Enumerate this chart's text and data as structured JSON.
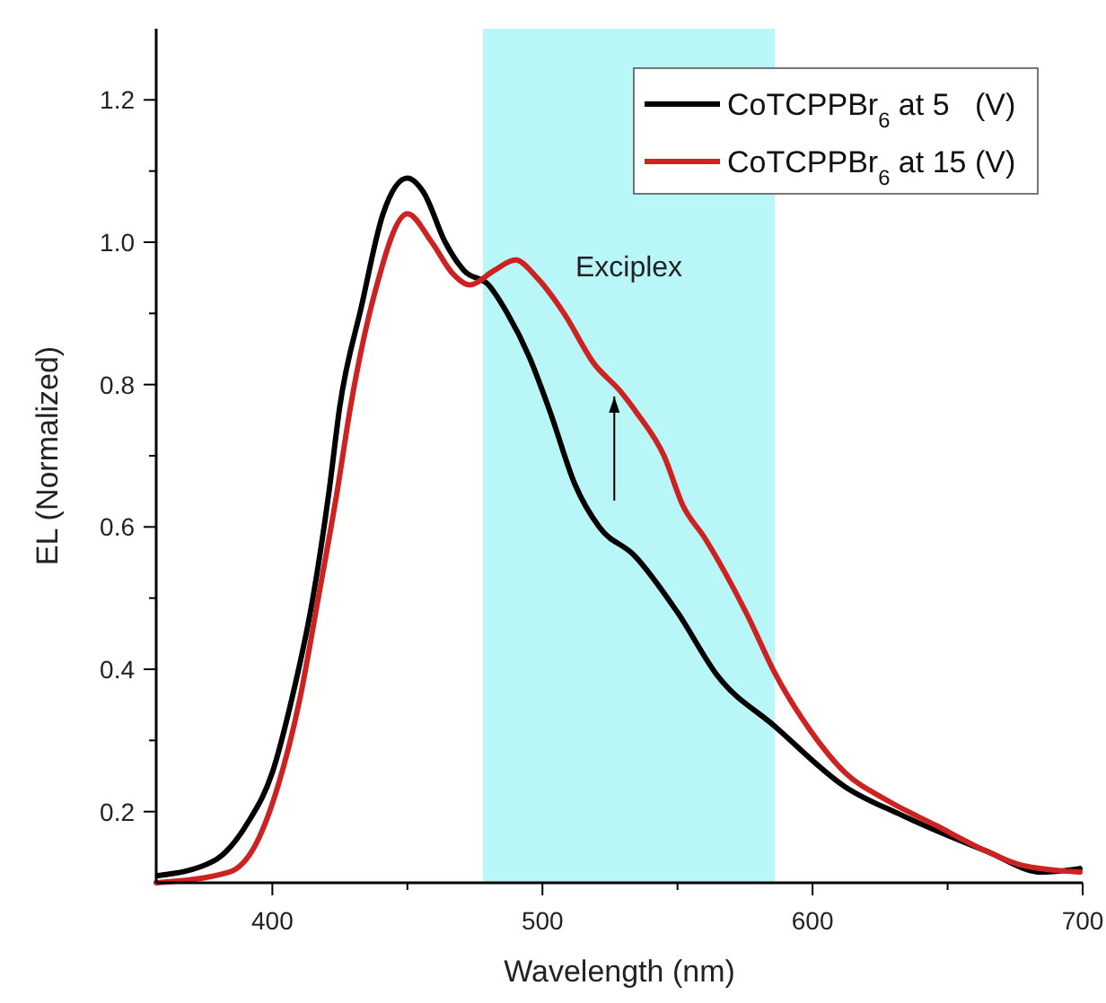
{
  "chart_data": {
    "type": "line",
    "xlabel": "Wavelength (nm)",
    "ylabel": "EL (Normalized)",
    "xlim": [
      357,
      700
    ],
    "ylim": [
      0.1,
      1.3
    ],
    "xticks": [
      400,
      {
        "value": 450,
        "label": null
      },
      500,
      {
        "value": 550,
        "label": null
      },
      600,
      {
        "value": 650,
        "label": null
      },
      700
    ],
    "yticks": [
      0.2,
      {
        "value": 0.3,
        "label": null
      },
      0.4,
      {
        "value": 0.5,
        "label": null
      },
      0.6,
      {
        "value": 0.7,
        "label": null
      },
      0.8,
      {
        "value": 0.9,
        "label": null
      },
      {
        "value": 1,
        "label": "1.0"
      },
      {
        "value": 1.1,
        "label": null
      },
      1.2
    ],
    "grid": false,
    "legend": "top right",
    "line_style": "solid",
    "bands": [
      {
        "axis": "x",
        "from": 478,
        "to": 586,
        "label": "Exciplex",
        "color": "#b8f6f8"
      }
    ],
    "series": [
      {
        "name": "CoTCPPBr$_{6}$ at 5   (V)",
        "color": "#000000",
        "x": [
          357.6,
          378,
          391,
          400,
          407,
          415,
          421,
          425,
          433,
          441,
          450,
          456,
          464,
          471,
          480,
          487,
          495,
          503,
          512,
          521,
          534,
          550,
          565,
          586,
          612,
          633,
          664,
          685,
          699
        ],
        "values": [
          0.11,
          0.13,
          0.185,
          0.255,
          0.355,
          0.5,
          0.65,
          0.77,
          0.91,
          1.04,
          1.09,
          1.07,
          1.0,
          0.96,
          0.94,
          0.9,
          0.84,
          0.76,
          0.66,
          0.6,
          0.56,
          0.48,
          0.39,
          0.32,
          0.235,
          0.195,
          0.145,
          0.115,
          0.12
        ]
      },
      {
        "name": "CoTCPPBr$_{6}$ at 15 (V)",
        "color": "#cc2222",
        "x": [
          357,
          384,
          394,
          402,
          410,
          417,
          424,
          429,
          438,
          450,
          459,
          467,
          473,
          482,
          490,
          498,
          508,
          519,
          529,
          535,
          545,
          552,
          560,
          576,
          586,
          599,
          612,
          628,
          646,
          664,
          677,
          699
        ],
        "values": [
          0.1,
          0.115,
          0.155,
          0.235,
          0.355,
          0.5,
          0.65,
          0.77,
          0.93,
          1.04,
          1.0,
          0.955,
          0.94,
          0.96,
          0.975,
          0.95,
          0.9,
          0.83,
          0.79,
          0.76,
          0.7,
          0.63,
          0.585,
          0.475,
          0.395,
          0.315,
          0.255,
          0.215,
          0.18,
          0.145,
          0.125,
          0.115
        ]
      }
    ]
  }
}
